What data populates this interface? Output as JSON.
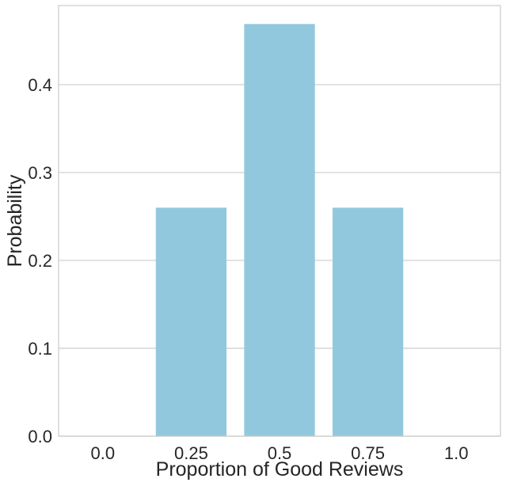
{
  "chart_data": {
    "type": "bar",
    "categories": [
      "0.0",
      "0.25",
      "0.5",
      "0.75",
      "1.0"
    ],
    "values": [
      0.0,
      0.26,
      0.469,
      0.26,
      0.0
    ],
    "title": "",
    "xlabel": "Proportion of Good Reviews",
    "ylabel": "Probability",
    "ylim": [
      0,
      0.49
    ],
    "yticks": [
      0.0,
      0.1,
      0.2,
      0.3,
      0.4
    ],
    "ytick_labels": [
      "0.0",
      "0.1",
      "0.2",
      "0.3",
      "0.4"
    ],
    "grid": "horizontal",
    "bar_color": "#92c8de",
    "grid_color": "#cccccc",
    "text_color": "#262626"
  }
}
